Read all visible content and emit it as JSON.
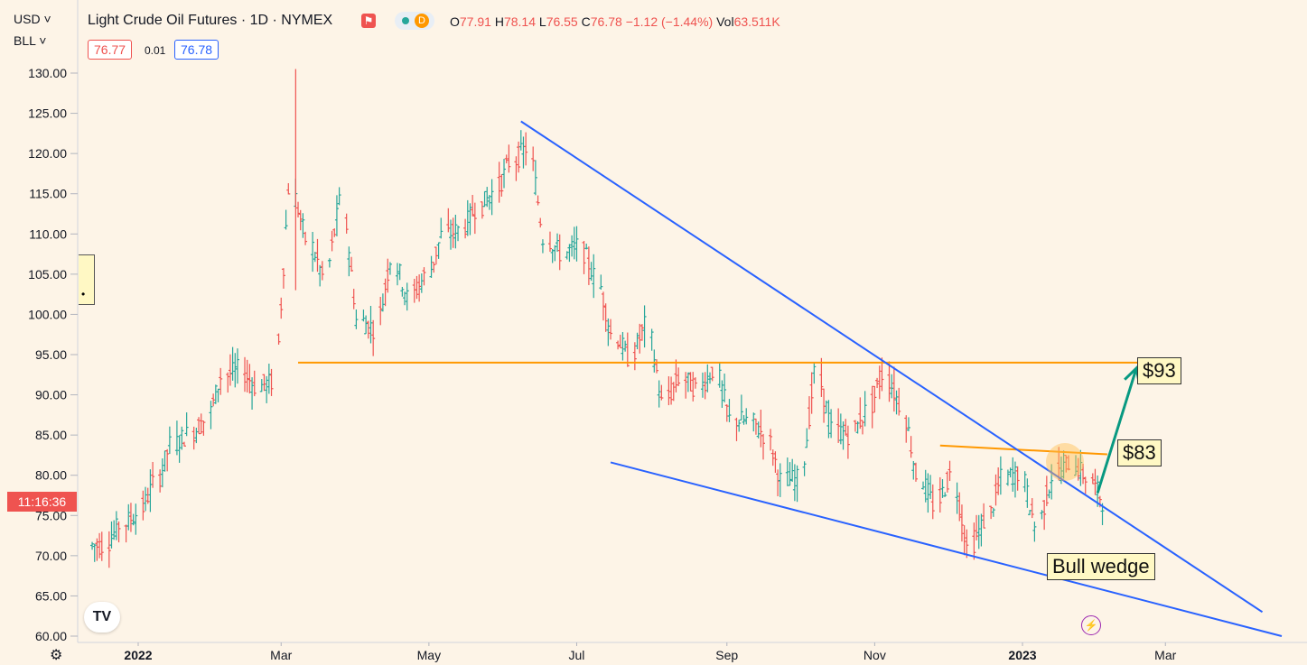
{
  "header": {
    "currency": "USD",
    "unit": "BLL",
    "title": "Light Crude Oil Futures · 1D · NYMEX",
    "ohlc": {
      "o_label": "O",
      "o": "77.91",
      "h_label": "H",
      "h": "78.14",
      "l_label": "L",
      "l": "76.55",
      "c_label": "C",
      "c": "76.78",
      "change": "−1.12 (−1.44%)",
      "vol_label": "Vol",
      "vol": "63.511K"
    },
    "bid": "76.77",
    "spread": "0.01",
    "ask": "76.78",
    "status_letter": "D"
  },
  "countdown": "11:16:36",
  "colors": {
    "background": "#fdf4e7",
    "up": "#26a69a",
    "down": "#ef5350",
    "trendline": "#2962ff",
    "level": "#ff9800",
    "arrow": "#089981",
    "annotation_bg": "#fff8c4"
  },
  "chart_data": {
    "type": "ohlc",
    "title": "Light Crude Oil Futures · 1D · NYMEX",
    "ylim": [
      60,
      131
    ],
    "y_ticks": [
      "130.00",
      "125.00",
      "120.00",
      "115.00",
      "110.00",
      "105.00",
      "100.00",
      "95.00",
      "90.00",
      "85.00",
      "80.00",
      "75.00",
      "70.00",
      "65.00",
      "60.00"
    ],
    "x_ticks": [
      "2022",
      "Mar",
      "May",
      "Jul",
      "Sep",
      "Nov",
      "2023",
      "Mar",
      "M"
    ],
    "x_tick_dates": [
      "2022-01-01",
      "2022-03-01",
      "2022-05-01",
      "2022-07-01",
      "2022-09-01",
      "2022-11-01",
      "2023-01-01",
      "2023-03-01",
      "2023-05-01"
    ],
    "xlim": [
      "2021-12-10",
      "2023-04-20"
    ],
    "series": [
      {
        "date": "2021-12-13",
        "close": 71.3
      },
      {
        "date": "2021-12-20",
        "close": 73.8
      },
      {
        "date": "2021-12-27",
        "close": 75.2
      },
      {
        "date": "2022-01-03",
        "close": 78.9
      },
      {
        "date": "2022-01-10",
        "close": 83.8
      },
      {
        "date": "2022-01-17",
        "close": 85.1
      },
      {
        "date": "2022-01-24",
        "close": 86.8
      },
      {
        "date": "2022-01-31",
        "close": 92.3
      },
      {
        "date": "2022-02-07",
        "close": 93.1
      },
      {
        "date": "2022-02-14",
        "close": 91.1
      },
      {
        "date": "2022-02-21",
        "close": 91.6
      },
      {
        "date": "2022-02-28",
        "close": 115.7
      },
      {
        "date": "2022-03-07",
        "close": 109.3
      },
      {
        "date": "2022-03-14",
        "close": 104.7
      },
      {
        "date": "2022-03-21",
        "close": 113.9
      },
      {
        "date": "2022-03-28",
        "close": 99.3
      },
      {
        "date": "2022-04-04",
        "close": 98.3
      },
      {
        "date": "2022-04-11",
        "close": 106.9
      },
      {
        "date": "2022-04-18",
        "close": 102.1
      },
      {
        "date": "2022-04-25",
        "close": 104.7
      },
      {
        "date": "2022-05-02",
        "close": 109.8
      },
      {
        "date": "2022-05-09",
        "close": 110.5
      },
      {
        "date": "2022-05-16",
        "close": 113.2
      },
      {
        "date": "2022-05-23",
        "close": 115.1
      },
      {
        "date": "2022-05-30",
        "close": 118.9
      },
      {
        "date": "2022-06-06",
        "close": 120.7
      },
      {
        "date": "2022-06-13",
        "close": 109.6
      },
      {
        "date": "2022-06-20",
        "close": 107.6
      },
      {
        "date": "2022-06-27",
        "close": 108.4
      },
      {
        "date": "2022-07-04",
        "close": 104.8
      },
      {
        "date": "2022-07-11",
        "close": 97.6
      },
      {
        "date": "2022-07-18",
        "close": 94.7
      },
      {
        "date": "2022-07-25",
        "close": 98.6
      },
      {
        "date": "2022-08-01",
        "close": 89.0
      },
      {
        "date": "2022-08-08",
        "close": 92.1
      },
      {
        "date": "2022-08-15",
        "close": 90.8
      },
      {
        "date": "2022-08-22",
        "close": 93.1
      },
      {
        "date": "2022-08-29",
        "close": 86.9
      },
      {
        "date": "2022-09-05",
        "close": 86.8
      },
      {
        "date": "2022-09-12",
        "close": 85.1
      },
      {
        "date": "2022-09-19",
        "close": 79.4
      },
      {
        "date": "2022-09-26",
        "close": 79.5
      },
      {
        "date": "2022-10-03",
        "close": 92.6
      },
      {
        "date": "2022-10-10",
        "close": 85.6
      },
      {
        "date": "2022-10-17",
        "close": 85.1
      },
      {
        "date": "2022-10-24",
        "close": 87.9
      },
      {
        "date": "2022-10-31",
        "close": 92.6
      },
      {
        "date": "2022-11-07",
        "close": 88.9
      },
      {
        "date": "2022-11-14",
        "close": 80.1
      },
      {
        "date": "2022-11-21",
        "close": 76.3
      },
      {
        "date": "2022-11-28",
        "close": 80.0
      },
      {
        "date": "2022-12-05",
        "close": 71.0
      },
      {
        "date": "2022-12-12",
        "close": 74.3
      },
      {
        "date": "2022-12-19",
        "close": 79.6
      },
      {
        "date": "2022-12-26",
        "close": 80.3
      },
      {
        "date": "2023-01-02",
        "close": 73.8
      },
      {
        "date": "2023-01-09",
        "close": 79.9
      },
      {
        "date": "2023-01-16",
        "close": 81.6
      },
      {
        "date": "2023-01-23",
        "close": 79.7
      },
      {
        "date": "2023-01-30",
        "close": 76.8
      }
    ],
    "drawings": [
      {
        "kind": "level",
        "label": "",
        "price": 94.0,
        "from": "2022-03-08",
        "to": "2023-02-25"
      },
      {
        "kind": "level",
        "label": "$83",
        "from": "2022-11-28",
        "from_price": 83.7,
        "to": "2023-02-05",
        "to_price": 82.6
      },
      {
        "kind": "trendline",
        "label": "",
        "from": "2022-06-08",
        "from_price": 124.0,
        "to": "2023-04-10",
        "to_price": 63.0
      },
      {
        "kind": "trendline",
        "label": "Bull wedge",
        "from": "2022-07-15",
        "from_price": 81.6,
        "to": "2023-04-18",
        "to_price": 60.0
      },
      {
        "kind": "arrow",
        "label": "$93",
        "from": "2023-02-01",
        "from_price": 77.8,
        "to": "2023-02-17",
        "to_price": 93.3
      }
    ]
  }
}
